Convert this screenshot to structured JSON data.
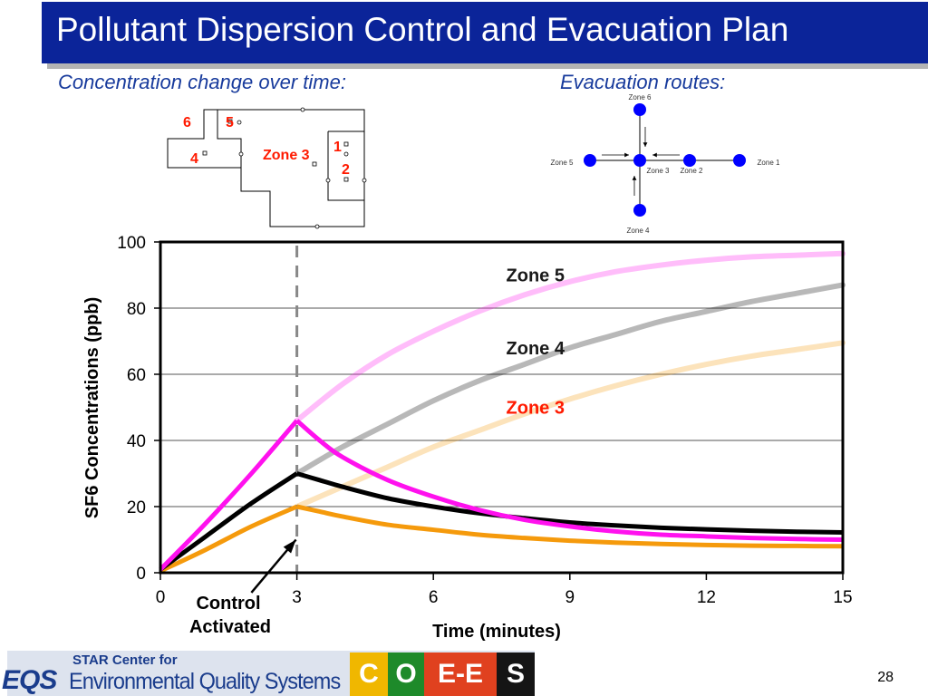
{
  "slide": {
    "title": "Pollutant Dispersion Control and Evacuation Plan",
    "left_subtitle": "Concentration change over time:",
    "right_subtitle": "Evacuation routes:",
    "page_number": "28"
  },
  "floor_plan": {
    "zone_label": "Zone 3",
    "numbers": [
      "6",
      "5",
      "4",
      "1",
      "2"
    ],
    "number_color": "#ff1a00"
  },
  "evacuation_diagram": {
    "nodes": [
      "Zone 6",
      "Zone 5",
      "Zone 3",
      "Zone 2",
      "Zone 1",
      "Zone 4"
    ],
    "node_color": "#0000ff"
  },
  "chart_data": {
    "type": "line",
    "xlabel": "Time (minutes)",
    "ylabel": "SF6 Concentrations (ppb)",
    "xlim": [
      0,
      15
    ],
    "ylim": [
      0,
      100
    ],
    "xticks": [
      0,
      3,
      6,
      9,
      12,
      15
    ],
    "yticks": [
      0,
      20,
      40,
      60,
      80,
      100
    ],
    "grid": "horizontal",
    "control_time": 3,
    "annotation": [
      "Control",
      "Activated"
    ],
    "series": [
      {
        "name": "Zone 5",
        "color": "#ff11ee",
        "controlled": [
          [
            0,
            1
          ],
          [
            1,
            15
          ],
          [
            2,
            30
          ],
          [
            3,
            46
          ],
          [
            3.5,
            40
          ],
          [
            4,
            35
          ],
          [
            5,
            28
          ],
          [
            6,
            23
          ],
          [
            7,
            19
          ],
          [
            8,
            16
          ],
          [
            9,
            14
          ],
          [
            10,
            12.5
          ],
          [
            11,
            11.5
          ],
          [
            12,
            11
          ],
          [
            13,
            10.5
          ],
          [
            14,
            10.2
          ],
          [
            15,
            10
          ]
        ],
        "uncontrolled": [
          [
            3,
            46
          ],
          [
            4,
            57
          ],
          [
            5,
            66
          ],
          [
            6,
            73
          ],
          [
            7,
            79
          ],
          [
            8,
            84
          ],
          [
            9,
            88
          ],
          [
            10,
            91
          ],
          [
            11,
            93
          ],
          [
            12,
            94.5
          ],
          [
            13,
            95.5
          ],
          [
            14,
            96
          ],
          [
            15,
            96.5
          ]
        ]
      },
      {
        "name": "Zone 4",
        "color": "#000000",
        "controlled": [
          [
            0,
            1
          ],
          [
            1,
            11
          ],
          [
            2,
            21
          ],
          [
            3,
            30
          ],
          [
            3.5,
            28
          ],
          [
            4,
            26
          ],
          [
            5,
            22.5
          ],
          [
            6,
            20
          ],
          [
            7,
            18
          ],
          [
            8,
            16.5
          ],
          [
            9,
            15.2
          ],
          [
            10,
            14.3
          ],
          [
            11,
            13.6
          ],
          [
            12,
            13.1
          ],
          [
            13,
            12.7
          ],
          [
            14,
            12.4
          ],
          [
            15,
            12.2
          ]
        ],
        "uncontrolled": [
          [
            3,
            30
          ],
          [
            4,
            38
          ],
          [
            5,
            45
          ],
          [
            6,
            52
          ],
          [
            7,
            58
          ],
          [
            8,
            63
          ],
          [
            9,
            68
          ],
          [
            10,
            72
          ],
          [
            11,
            76
          ],
          [
            12,
            79
          ],
          [
            13,
            82
          ],
          [
            14,
            84.5
          ],
          [
            15,
            87
          ]
        ]
      },
      {
        "name": "Zone 3",
        "color": "#f59a0c",
        "controlled": [
          [
            0,
            0.5
          ],
          [
            1,
            7
          ],
          [
            2,
            14
          ],
          [
            3,
            20
          ],
          [
            3.5,
            18.5
          ],
          [
            4,
            17
          ],
          [
            5,
            14.5
          ],
          [
            6,
            13
          ],
          [
            7,
            11.5
          ],
          [
            8,
            10.5
          ],
          [
            9,
            9.7
          ],
          [
            10,
            9.1
          ],
          [
            11,
            8.7
          ],
          [
            12,
            8.4
          ],
          [
            13,
            8.2
          ],
          [
            14,
            8.1
          ],
          [
            15,
            8
          ]
        ],
        "uncontrolled": [
          [
            3,
            20
          ],
          [
            4,
            26
          ],
          [
            5,
            32
          ],
          [
            6,
            38
          ],
          [
            7,
            43
          ],
          [
            8,
            48
          ],
          [
            9,
            52.5
          ],
          [
            10,
            56.5
          ],
          [
            11,
            60
          ],
          [
            12,
            63
          ],
          [
            13,
            65.5
          ],
          [
            14,
            67.5
          ],
          [
            15,
            69.5
          ]
        ]
      }
    ],
    "legend_labels": [
      {
        "text": "Zone 5",
        "color": "#1a1a1a"
      },
      {
        "text": "Zone 4",
        "color": "#1a1a1a"
      },
      {
        "text": "Zone 3",
        "color": "#ff1a00"
      }
    ]
  },
  "footer": {
    "logo_main": "EQS",
    "logo_sub": "STAR Center for",
    "logo_name": "Environmental Quality Systems",
    "tiles": [
      {
        "letter": "C",
        "bg": "#f0b700"
      },
      {
        "letter": "O",
        "bg": "#1e8a2a"
      },
      {
        "letter": "E-E",
        "bg": "#e0411f"
      },
      {
        "letter": "S",
        "bg": "#151515"
      }
    ]
  }
}
